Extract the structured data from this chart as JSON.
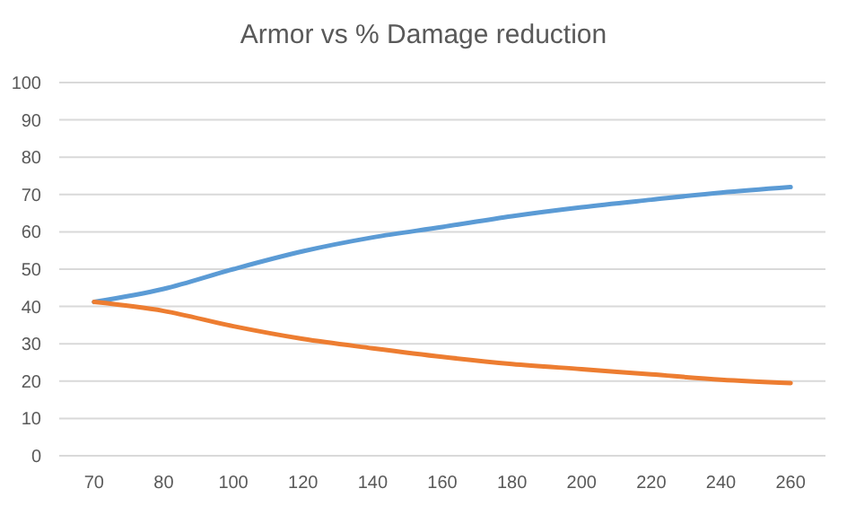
{
  "chart_data": {
    "type": "line",
    "title": "Armor vs % Damage reduction",
    "categories": [
      "70",
      "80",
      "100",
      "120",
      "140",
      "160",
      "180",
      "200",
      "220",
      "240",
      "260"
    ],
    "series": [
      {
        "color": "#5b9bd5",
        "values": [
          41.2,
          44.7,
          50,
          54.8,
          58.5,
          61.3,
          64.2,
          66.6,
          68.6,
          70.5,
          72
        ]
      },
      {
        "color": "#ed7d31",
        "values": [
          41.2,
          38.8,
          34.7,
          31.3,
          28.8,
          26.5,
          24.6,
          23.2,
          21.8,
          20.4,
          19.5
        ]
      }
    ],
    "ylim": [
      0,
      100
    ],
    "yticks": [
      0,
      10,
      20,
      30,
      40,
      50,
      60,
      70,
      80,
      90,
      100
    ],
    "grid": "y",
    "marker": "none",
    "line_style": "solid"
  }
}
